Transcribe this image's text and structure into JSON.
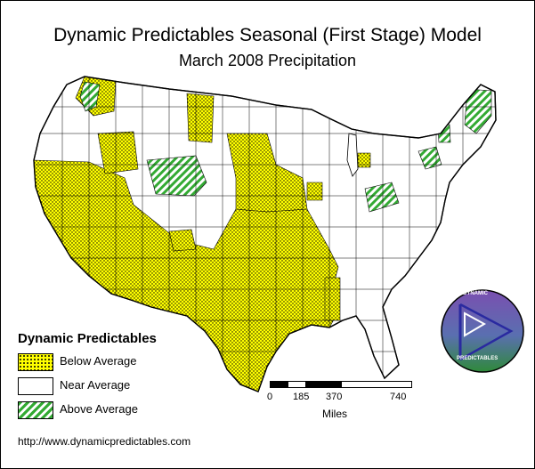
{
  "title": "Dynamic Predictables Seasonal (First Stage) Model",
  "subtitle": "March 2008 Precipitation",
  "legend": {
    "title": "Dynamic Predictables",
    "items": [
      {
        "label": "Below Average",
        "color": "#ffff00",
        "pattern": "dots"
      },
      {
        "label": "Near Average",
        "color": "#ffffff",
        "pattern": "none"
      },
      {
        "label": "Above Average",
        "color": "#33aa33",
        "pattern": "diagonal-stripes"
      }
    ]
  },
  "scale": {
    "ticks": [
      "0",
      "185",
      "370",
      "740"
    ],
    "units": "Miles"
  },
  "logo": {
    "top_text": "DYNAMIC",
    "bottom_text": "PREDICTABLES"
  },
  "footer": {
    "url": "http://www.dynamicpredictables.com"
  }
}
